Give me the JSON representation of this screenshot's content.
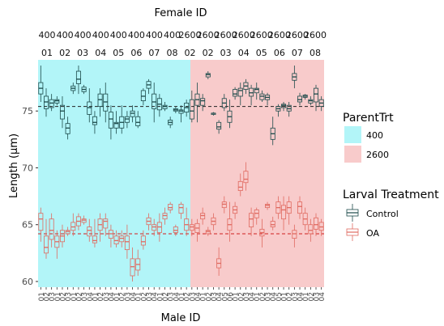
{
  "chart_data": {
    "type": "boxplot",
    "title": "Female ID",
    "xlabel": "Male ID",
    "ylabel": "Length (μm)",
    "ylim": [
      59.5,
      79.5
    ],
    "yticks": [
      60,
      65,
      70,
      75
    ],
    "grid": false,
    "legend_position": "right",
    "strip_top": [
      "400",
      "400",
      "400",
      "400",
      "400",
      "400",
      "400",
      "400",
      "2600",
      "2600",
      "2600",
      "2600",
      "2600",
      "2600",
      "2600",
      "2600"
    ],
    "strip_bottom": [
      "01",
      "02",
      "03",
      "04",
      "05",
      "06",
      "07",
      "08",
      "02",
      "02",
      "03",
      "04",
      "05",
      "06",
      "07",
      "08"
    ],
    "parent_groups": [
      {
        "name": "400",
        "color": "#b2f5f8"
      },
      {
        "name": "2600",
        "color": "#f8cbcb"
      }
    ],
    "legends": {
      "parent": {
        "title": "ParentTrt",
        "items": [
          {
            "label": "400",
            "color": "#b2f5f8"
          },
          {
            "label": "2600",
            "color": "#f8cbcb"
          }
        ]
      },
      "larval": {
        "title": "Larval Treatment",
        "items": [
          {
            "label": "Control",
            "color": "#1c4a4a"
          },
          {
            "label": "OA",
            "color": "#e06a60"
          }
        ]
      }
    },
    "reference_lines": [
      {
        "series": "Control",
        "y": 75.4,
        "color": "#222222"
      },
      {
        "series": "OA",
        "y": 64.2,
        "color": "#d11f1f"
      }
    ],
    "x_labels": [
      "01",
      "02",
      "03",
      "01",
      "02",
      "03",
      "01",
      "02",
      "03",
      "04",
      "01",
      "02",
      "03",
      "04",
      "01",
      "02",
      "03",
      "04",
      "01",
      "02",
      "03",
      "04",
      "01",
      "02",
      "03",
      "04",
      "01",
      "02",
      "03",
      "04",
      "01",
      "02",
      "03",
      "04",
      "05",
      "06",
      "01",
      "02",
      "03",
      "04",
      "01",
      "02",
      "03",
      "04",
      "05",
      "01",
      "02",
      "03",
      "04",
      "01",
      "02",
      "03",
      "04"
    ],
    "series": [
      {
        "name": "Control",
        "color": "#1c4a4a",
        "boxes": [
          [
            75.8,
            76.5,
            77.0,
            77.5,
            79.0
          ],
          [
            74.5,
            75.2,
            75.8,
            76.3,
            77.0
          ],
          [
            75.0,
            75.3,
            75.7,
            76.0,
            76.5
          ],
          [
            75.5,
            75.7,
            75.9,
            76.0,
            76.3
          ],
          [
            73.5,
            74.3,
            75.0,
            75.5,
            76.3
          ],
          [
            72.5,
            73.0,
            73.5,
            73.9,
            74.5
          ],
          [
            76.5,
            76.8,
            77.0,
            77.2,
            77.5
          ],
          [
            76.5,
            77.4,
            77.8,
            78.5,
            79.0
          ],
          [
            76.5,
            76.7,
            76.9,
            77.1,
            77.3
          ],
          [
            74.0,
            74.7,
            75.3,
            75.8,
            77.0
          ],
          [
            73.0,
            73.8,
            74.0,
            74.5,
            75.0
          ],
          [
            74.5,
            75.4,
            76.0,
            76.5,
            77.0
          ],
          [
            74.0,
            75.0,
            75.8,
            76.5,
            77.5
          ],
          [
            72.5,
            73.5,
            74.3,
            74.9,
            75.5
          ],
          [
            73.0,
            73.5,
            73.9,
            74.0,
            75.0
          ],
          [
            73.0,
            73.5,
            74.0,
            74.5,
            75.5
          ],
          [
            73.5,
            74.0,
            74.3,
            74.5,
            75.0
          ],
          [
            74.0,
            74.5,
            74.8,
            75.0,
            75.5
          ],
          [
            73.5,
            73.7,
            74.0,
            74.5,
            75.0
          ],
          [
            75.5,
            75.9,
            76.3,
            76.8,
            77.0
          ],
          [
            76.5,
            77.0,
            77.3,
            77.6,
            77.8
          ],
          [
            74.0,
            75.2,
            75.8,
            76.5,
            77.5
          ],
          [
            74.5,
            75.1,
            75.6,
            76.1,
            76.5
          ],
          [
            75.0,
            75.2,
            75.4,
            75.5,
            75.8
          ],
          [
            73.5,
            73.8,
            74.0,
            74.2,
            74.5
          ],
          [
            74.8,
            75.0,
            75.1,
            75.2,
            75.4
          ],
          [
            74.0,
            74.8,
            75.0,
            75.1,
            75.5
          ],
          [
            74.5,
            74.9,
            75.3,
            75.7,
            76.0
          ],
          [
            74.0,
            74.3,
            75.0,
            76.0,
            76.8
          ],
          [
            74.0,
            75.5,
            76.0,
            76.5,
            77.5
          ],
          [
            75.0,
            75.5,
            75.9,
            76.1,
            76.5
          ],
          [
            77.8,
            78.0,
            78.2,
            78.3,
            78.5
          ],
          [
            74.6,
            74.7,
            74.8,
            74.8,
            74.9
          ],
          [
            73.0,
            73.4,
            73.6,
            74.0,
            74.2
          ],
          [
            75.0,
            75.3,
            75.7,
            76.1,
            76.5
          ],
          [
            73.5,
            74.0,
            74.5,
            75.0,
            76.0
          ],
          [
            76.0,
            76.3,
            76.5,
            76.9,
            77.1
          ],
          [
            75.5,
            76.3,
            76.8,
            77.0,
            77.5
          ],
          [
            76.5,
            76.9,
            77.2,
            77.5,
            77.8
          ],
          [
            75.5,
            76.3,
            76.6,
            77.0,
            77.3
          ],
          [
            76.0,
            76.6,
            76.9,
            77.0,
            77.5
          ],
          [
            75.8,
            76.0,
            76.3,
            76.5,
            76.8
          ],
          [
            75.5,
            76.0,
            76.2,
            76.4,
            76.6
          ],
          [
            72.0,
            72.5,
            73.0,
            73.5,
            74.5
          ],
          [
            74.5,
            75.0,
            75.2,
            75.4,
            75.6
          ],
          [
            75.0,
            75.3,
            75.5,
            75.6,
            75.8
          ],
          [
            74.5,
            75.0,
            75.2,
            75.5,
            75.8
          ],
          [
            77.0,
            77.7,
            78.0,
            78.3,
            79.0
          ],
          [
            75.5,
            75.8,
            76.0,
            76.3,
            76.6
          ],
          [
            76.0,
            76.2,
            76.3,
            76.4,
            76.5
          ],
          [
            75.5,
            75.7,
            75.9,
            76.0,
            76.3
          ],
          [
            75.0,
            75.8,
            76.5,
            77.0,
            77.3
          ],
          [
            75.0,
            75.4,
            75.7,
            76.0,
            76.3
          ]
        ]
      },
      {
        "name": "OA",
        "color": "#e06a60",
        "boxes": [
          [
            63.5,
            64.5,
            65.5,
            66.0,
            66.5
          ],
          [
            62.0,
            62.5,
            63.0,
            64.0,
            65.5
          ],
          [
            63.0,
            63.7,
            64.5,
            65.5,
            66.0
          ],
          [
            62.0,
            63.0,
            63.5,
            64.0,
            64.5
          ],
          [
            63.0,
            63.5,
            64.0,
            64.5,
            65.0
          ],
          [
            64.0,
            64.2,
            64.4,
            64.5,
            64.8
          ],
          [
            64.0,
            64.5,
            64.8,
            65.2,
            66.0
          ],
          [
            64.5,
            64.9,
            65.3,
            65.7,
            66.0
          ],
          [
            65.0,
            65.2,
            65.4,
            65.5,
            65.8
          ],
          [
            63.5,
            64.0,
            64.5,
            64.8,
            65.5
          ],
          [
            63.0,
            63.4,
            63.6,
            64.0,
            65.5
          ],
          [
            63.5,
            64.5,
            65.0,
            65.5,
            66.0
          ],
          [
            64.0,
            64.7,
            65.3,
            65.5,
            66.0
          ],
          [
            63.0,
            63.8,
            64.2,
            64.5,
            65.0
          ],
          [
            63.0,
            63.3,
            63.6,
            64.0,
            64.5
          ],
          [
            63.0,
            63.5,
            63.8,
            64.0,
            64.5
          ],
          [
            62.0,
            62.8,
            63.5,
            64.0,
            65.0
          ],
          [
            60.0,
            60.5,
            61.3,
            62.0,
            63.0
          ],
          [
            60.5,
            61.0,
            61.5,
            62.0,
            62.8
          ],
          [
            62.8,
            63.2,
            63.5,
            64.0,
            64.5
          ],
          [
            64.5,
            65.0,
            65.3,
            65.6,
            66.0
          ],
          [
            64.0,
            64.5,
            64.8,
            65.0,
            65.5
          ],
          [
            63.5,
            64.3,
            64.8,
            65.2,
            66.0
          ],
          [
            65.0,
            65.5,
            65.8,
            66.0,
            66.5
          ],
          [
            66.0,
            66.3,
            66.5,
            66.8,
            67.0
          ],
          [
            64.0,
            64.3,
            64.5,
            64.8,
            65.0
          ],
          [
            65.5,
            66.0,
            66.5,
            66.8,
            67.0
          ],
          [
            64.0,
            64.5,
            65.0,
            65.5,
            66.5
          ],
          [
            64.0,
            64.5,
            64.8,
            65.0,
            65.5
          ],
          [
            63.5,
            64.3,
            64.7,
            65.1,
            65.5
          ],
          [
            65.0,
            65.5,
            65.8,
            66.0,
            66.5
          ],
          [
            64.0,
            64.2,
            64.4,
            64.5,
            64.8
          ],
          [
            64.5,
            65.0,
            65.3,
            65.6,
            66.0
          ],
          [
            60.5,
            61.2,
            61.6,
            62.0,
            63.0
          ],
          [
            66.0,
            66.5,
            66.8,
            67.0,
            67.5
          ],
          [
            63.5,
            64.5,
            65.0,
            65.5,
            67.0
          ],
          [
            65.5,
            66.0,
            66.3,
            66.6,
            67.0
          ],
          [
            67.5,
            68.0,
            68.3,
            68.8,
            69.5
          ],
          [
            68.0,
            68.7,
            69.0,
            69.7,
            70.5
          ],
          [
            64.0,
            64.8,
            65.5,
            66.0,
            66.5
          ],
          [
            65.0,
            65.6,
            66.0,
            66.3,
            66.5
          ],
          [
            63.0,
            64.0,
            64.3,
            64.6,
            65.5
          ],
          [
            66.3,
            66.5,
            66.7,
            66.8,
            67.0
          ],
          [
            64.5,
            64.8,
            65.0,
            65.3,
            65.7
          ],
          [
            65.5,
            66.0,
            66.5,
            67.0,
            67.5
          ],
          [
            64.5,
            65.5,
            66.3,
            66.7,
            67.5
          ],
          [
            65.0,
            66.0,
            66.5,
            67.0,
            67.5
          ],
          [
            63.0,
            63.8,
            64.2,
            64.5,
            65.0
          ],
          [
            65.5,
            66.0,
            66.6,
            67.0,
            67.5
          ],
          [
            64.5,
            65.0,
            65.5,
            66.0,
            66.5
          ],
          [
            63.5,
            64.2,
            64.5,
            65.0,
            65.5
          ],
          [
            64.0,
            64.6,
            65.0,
            65.6,
            66.0
          ],
          [
            64.0,
            64.5,
            64.8,
            65.2,
            65.5
          ]
        ]
      }
    ]
  }
}
